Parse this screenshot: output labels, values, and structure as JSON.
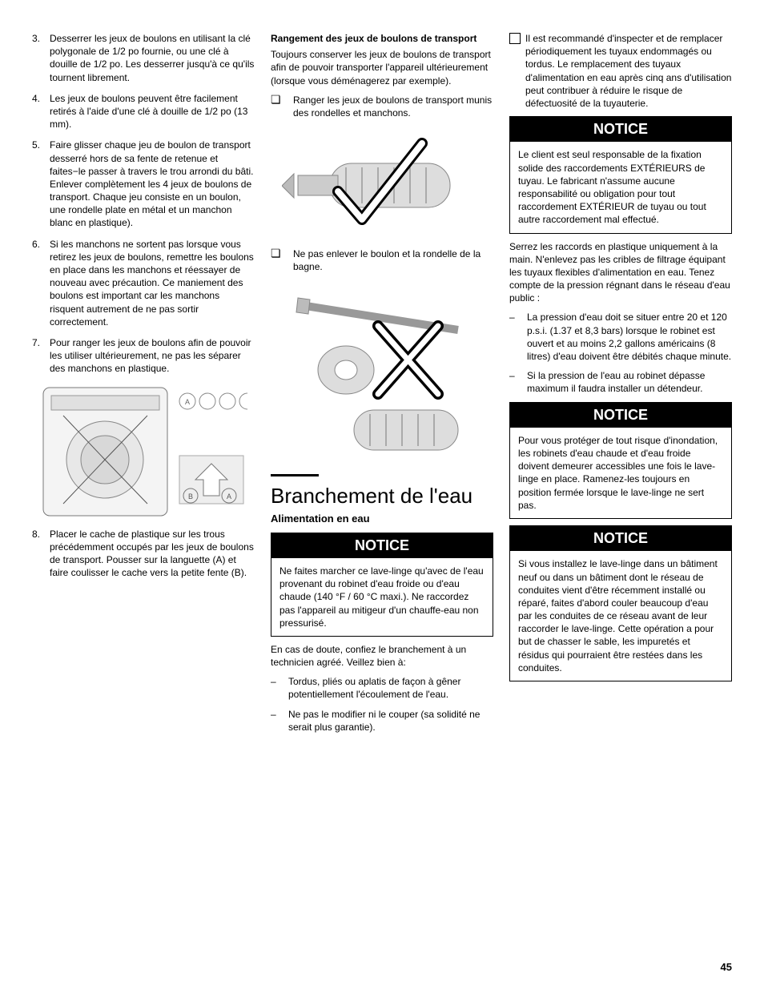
{
  "col1": {
    "items": [
      {
        "n": "3.",
        "t": "Desserrer les jeux de boulons en utilisant la clé polygonale de 1/2 po fournie, ou une clé à douille de 1/2 po.  Les desserrer jusqu'à ce qu'ils tournent librement."
      },
      {
        "n": "4.",
        "t": "Les jeux de boulons peuvent être facilement retirés à l'aide d'une clé à douille de 1/2 po (13 mm)."
      },
      {
        "n": "5.",
        "t": "Faire glisser chaque jeu de boulon de transport desserré hors de sa fente de retenue et faites−le passer à travers le trou arrondi du bâti. Enlever complètement les 4 jeux de boulons de transport. Chaque jeu consiste en un boulon, une rondelle plate en métal et un manchon blanc en plastique)."
      },
      {
        "n": "6.",
        "t": "Si les manchons ne sortent pas lorsque vous retirez les jeux de boulons, remettre les boulons en place dans les manchons et réessayer de nouveau avec précaution.  Ce maniement des boulons est important car les manchons risquent autrement de ne pas sortir correctement."
      },
      {
        "n": "7.",
        "t": "Pour ranger les jeux de boulons afin de pouvoir les utiliser ultérieurement, ne pas les séparer des manchons en plastique."
      }
    ],
    "item8": {
      "n": "8.",
      "t": "Placer le cache de plastique sur les trous précédemment occupés par les jeux de boulons de transport.  Pousser sur la languette (A) et faire coulisser le cache vers la petite fente (B)."
    }
  },
  "col2": {
    "storage_head": "Rangement des jeux de boulons de transport",
    "storage_para": "Toujours conserver les jeux de boulons de transport afin de pouvoir transporter l'appareil ultérieurement (lorsque vous déménagerez par exemple).",
    "check1": "Ranger les jeux de boulons de transport munis des rondelles et manchons.",
    "check2": "Ne pas enlever le boulon et la rondelle de la bagne.",
    "section_title": "Branchement de l'eau",
    "subsection": "Alimentation en eau",
    "notice_label": "NOTICE",
    "notice1": "Ne faites marcher ce lave-linge qu'avec de l'eau provenant du robinet d'eau froide ou d'eau chaude (140 °F / 60 °C maxi.). Ne raccordez pas l'appareil au mitigeur d'un chauffe-eau non pressurisé.",
    "after_notice": "En cas de doute, confiez le branchement à un technicien agréé. Veillez bien à:",
    "dash1": "Tordus, pliés ou aplatis de façon à gêner potentiellement l'écoulement de l'eau.",
    "dash2": "Ne pas le modifier ni le couper (sa solidité ne serait plus garantie)."
  },
  "col3": {
    "top_check": "Il est recommandé d'inspecter et de remplacer périodiquement les tuyaux endommagés ou tordus. Le remplacement des tuyaux d'alimentation en eau après cinq ans d'utilisation peut contribuer à réduire le risque de défectuosité de la tuyauterie.",
    "notice_label": "NOTICE",
    "notice1": "Le client est seul responsable de la fixation solide des raccordements EXTÉRIEURS de tuyau.  Le fabricant n'assume aucune responsabilité ou obligation pour tout raccordement EXTÉRIEUR de tuyau ou tout autre raccordement mal effectué.",
    "para1": "Serrez les raccords en plastique uniquement à la main. N'enlevez pas les cribles de filtrage équipant les tuyaux flexibles d'alimentation en eau. Tenez compte de la pression régnant dans le réseau d'eau public :",
    "dash1": "La pression d'eau doit se situer entre 20 et 120  p.s.i. (1.37 et 8,3 bars) lorsque le robinet est ouvert et au moins 2,2 gallons américains (8 litres) d'eau doivent être débités chaque minute.",
    "dash2": "Si la pression de l'eau au robinet dépasse maximum il faudra installer un détendeur.",
    "notice2": "Pour vous protéger de tout risque d'inondation, les robinets d'eau chaude et d'eau froide doivent demeurer accessibles une fois le lave-linge en place. Ramenez-les toujours en position fermée lorsque le lave-linge ne sert pas.",
    "notice3": "Si vous installez le lave-linge dans un bâtiment neuf ou dans un bâtiment dont le réseau de conduites vient d'être récemment installé ou réparé, faites d'abord couler beaucoup d'eau par les conduites de ce réseau avant de leur raccorder le lave-linge. Cette opération a pour but de chasser le sable, les impuretés et résidus qui pourraient être restées dans les conduites."
  },
  "page_number": "45"
}
